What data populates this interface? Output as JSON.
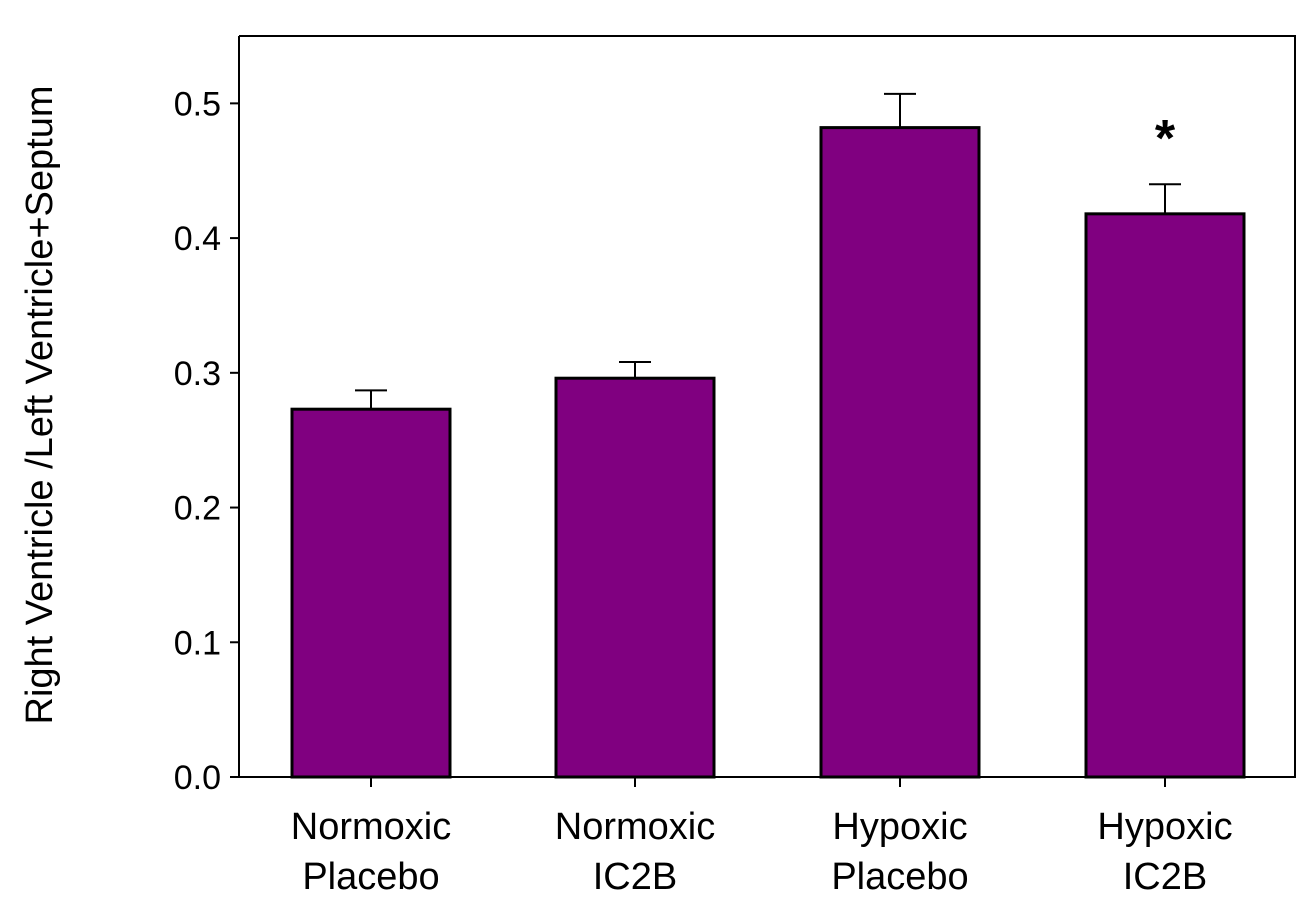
{
  "chart_data": {
    "type": "bar",
    "title": "",
    "xlabel": "",
    "ylabel": "Right Ventricle /Left Ventricle+Septum",
    "categories": [
      [
        "Normoxic",
        "Placebo"
      ],
      [
        "Normoxic",
        "IC2B"
      ],
      [
        "Hypoxic",
        "Placebo"
      ],
      [
        "Hypoxic",
        "IC2B"
      ]
    ],
    "values": [
      0.273,
      0.296,
      0.482,
      0.418
    ],
    "errors": [
      0.014,
      0.012,
      0.025,
      0.022
    ],
    "annotations": [
      "",
      "",
      "",
      "*"
    ],
    "ylim": [
      0,
      0.55
    ],
    "yticks": [
      0.0,
      0.1,
      0.2,
      0.3,
      0.4,
      0.5
    ],
    "ytick_labels": [
      "0.0",
      "0.1",
      "0.2",
      "0.3",
      "0.4",
      "0.5"
    ],
    "grid": false,
    "bar_color": "#800080",
    "edge_color": "#000000"
  }
}
